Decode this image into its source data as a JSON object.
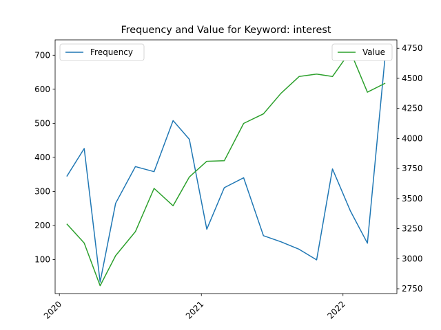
{
  "chart_data": {
    "type": "line",
    "title": "Frequency and Value for Keyword: interest",
    "xlabel": "",
    "ylabel_left": "",
    "ylabel_right": "",
    "x_ticks": [
      "2020",
      "2021",
      "2022"
    ],
    "x": [
      "2020-01-20",
      "2020-03-05",
      "2020-04-15",
      "2020-05-25",
      "2020-07-15",
      "2020-09-01",
      "2020-10-20",
      "2020-12-01",
      "2021-01-15",
      "2021-03-01",
      "2021-04-20",
      "2021-06-10",
      "2021-07-25",
      "2021-09-10",
      "2021-10-25",
      "2021-12-05",
      "2022-01-20",
      "2022-03-05",
      "2022-04-20"
    ],
    "left_axis": {
      "ylim": [
        0,
        745
      ],
      "ticks": [
        100,
        200,
        300,
        400,
        500,
        600,
        700
      ]
    },
    "right_axis": {
      "ylim": [
        2710,
        4820
      ],
      "ticks": [
        2750,
        3000,
        3250,
        3500,
        3750,
        4000,
        4250,
        4500,
        4750
      ]
    },
    "series": [
      {
        "name": "Frequency",
        "axis": "left",
        "color": "#1f77b4",
        "values": [
          344,
          426,
          34,
          265,
          373,
          358,
          508,
          453,
          189,
          311,
          340,
          170,
          152,
          130,
          99,
          366,
          243,
          148,
          700
        ]
      },
      {
        "name": "Value",
        "axis": "right",
        "color": "#2ca02c",
        "values": [
          3290,
          3130,
          2775,
          3025,
          3225,
          3585,
          3440,
          3680,
          3810,
          3815,
          4125,
          4205,
          4375,
          4515,
          4535,
          4515,
          4725,
          4385,
          4460
        ]
      }
    ],
    "legends": [
      {
        "entry": "Frequency",
        "position": "upper-left"
      },
      {
        "entry": "Value",
        "position": "upper-right"
      }
    ],
    "grid": false
  }
}
